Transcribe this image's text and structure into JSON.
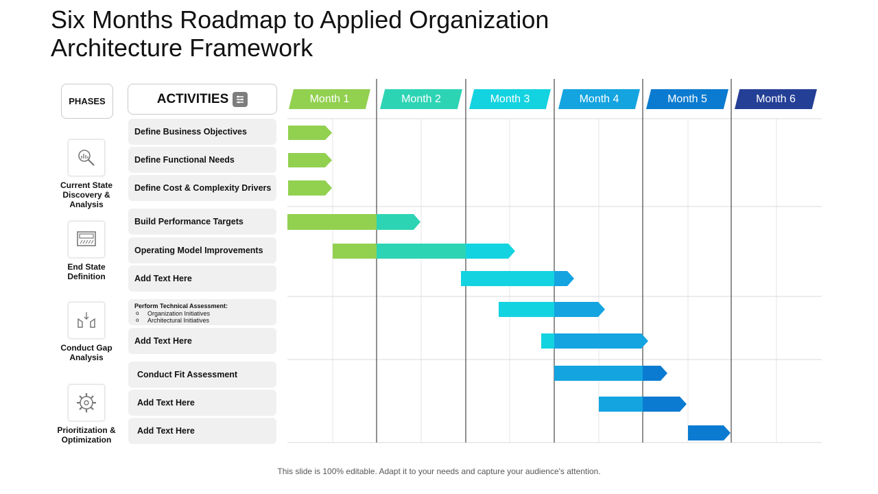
{
  "title": "Six Months Roadmap to Applied Organization Architecture Framework",
  "phases_header": "PHASES",
  "activities_header": "ACTIVITIES",
  "months": [
    {
      "label": "Month  1",
      "color": "#92d050"
    },
    {
      "label": "Month  2",
      "color": "#2dd4b4"
    },
    {
      "label": "Month  3",
      "color": "#14d3e0"
    },
    {
      "label": "Month  4",
      "color": "#14a4e0"
    },
    {
      "label": "Month  5",
      "color": "#0a7bd0"
    },
    {
      "label": "Month  6",
      "color": "#243f96"
    }
  ],
  "phases": [
    {
      "label": "Current State Discovery & Analysis",
      "icon": "magnifier-icon"
    },
    {
      "label": "End State Definition",
      "icon": "monitor-icon"
    },
    {
      "label": "Conduct Gap Analysis",
      "icon": "gap-icon"
    },
    {
      "label": "Prioritization & Optimization",
      "icon": "gear-icon"
    }
  ],
  "activities": [
    {
      "label": "Define Business Objectives"
    },
    {
      "label": "Define Functional  Needs"
    },
    {
      "label": "Define Cost & Complexity Drivers"
    },
    {
      "label": "Build  Performance Targets"
    },
    {
      "label": "Operating Model Improvements"
    },
    {
      "label": "Add  Text Here"
    },
    {
      "label": "Perform Technical Assessment:",
      "bullets": [
        "Organization Initiatives",
        "Architectural Initiatives"
      ]
    },
    {
      "label": "Add  Text Here"
    },
    {
      "label": "Conduct  Fit Assessment"
    },
    {
      "label": "Add  Text Here"
    },
    {
      "label": "Add  Text Here"
    }
  ],
  "footer": "This slide is 100% editable. Adapt it to your needs and capture your audience's attention."
}
